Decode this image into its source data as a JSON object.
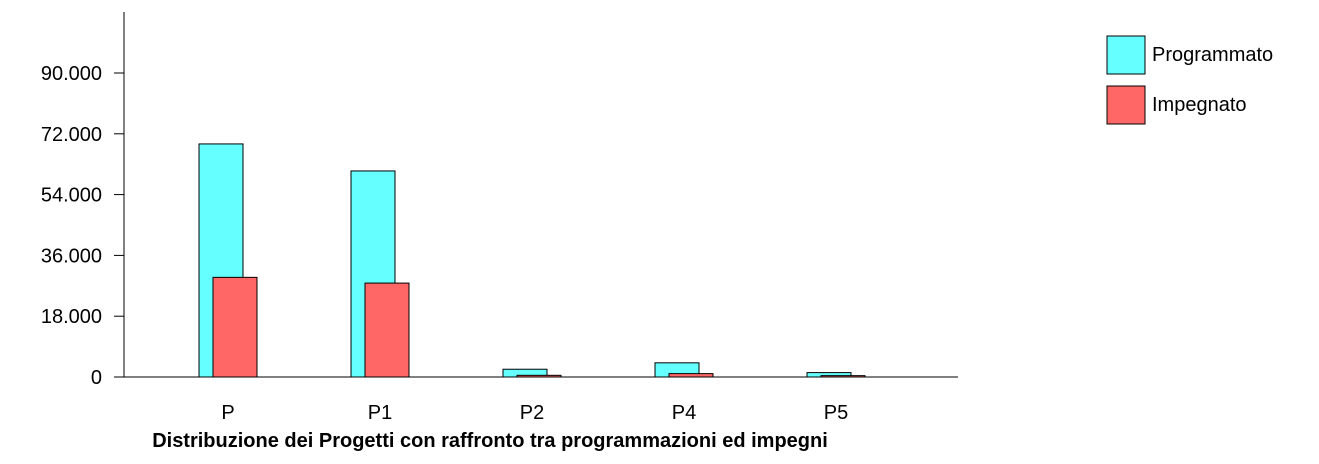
{
  "chart_data": {
    "type": "bar",
    "title": "Distribuzione dei Progetti con raffronto tra programmazioni ed impegni",
    "xlabel": "",
    "ylabel": "",
    "categories": [
      "P",
      "P1",
      "P2",
      "P4",
      "P5"
    ],
    "series": [
      {
        "name": "Programmato",
        "color": "#66ffff",
        "values": [
          69000,
          61000,
          2300,
          4200,
          1300
        ]
      },
      {
        "name": "Impegnato",
        "color": "#ff6666",
        "values": [
          29500,
          27800,
          500,
          1000,
          400
        ]
      }
    ],
    "yticks": [
      "0",
      "18.000",
      "36.000",
      "54.000",
      "72.000",
      "90.000"
    ],
    "ytick_values": [
      0,
      18000,
      36000,
      54000,
      72000,
      90000
    ],
    "ylim": [
      0,
      108000
    ],
    "grid": false,
    "legend_position": "top-right"
  }
}
